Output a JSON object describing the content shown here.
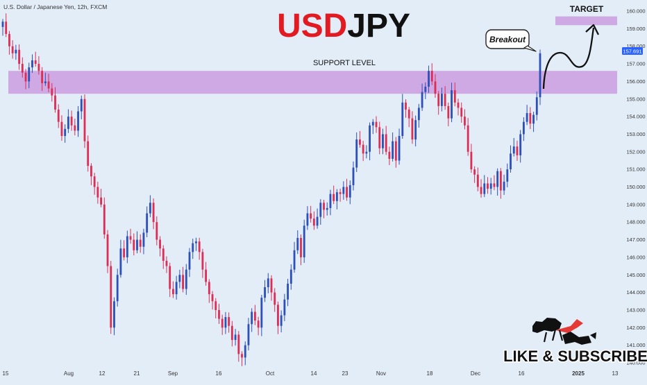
{
  "header": {
    "source": "U.S. Dollar / Japanese Yen, 12h, FXCM"
  },
  "title": {
    "part1": "USD",
    "part2": "JPY"
  },
  "annotations": {
    "target": "TARGET",
    "support": "SUPPORT LEVEL",
    "breakout": "Breakout",
    "cta": "LIKE & SUBSCRIBE"
  },
  "price_badge": "157.691",
  "colors": {
    "background": "#e3edf8",
    "bull": "#2d4fb8",
    "bear": "#dc2e55",
    "zone": "#cfa9e3",
    "title_red": "#e21b23",
    "title_dark": "#111111",
    "badge": "#2962ff"
  },
  "chart_data": {
    "type": "candlestick",
    "timeframe": "12h",
    "symbol": "USDJPY",
    "y_axis": {
      "min": 140,
      "max": 160,
      "step": 1,
      "decimals": 3
    },
    "x_ticks": [
      "15",
      "Aug",
      "12",
      "21",
      "Sep",
      "16",
      "Oct",
      "14",
      "23",
      "Nov",
      "18",
      "Dec",
      "16",
      "2025",
      "13"
    ],
    "support_zone": [
      155.3,
      156.6
    ],
    "target_zone": [
      159.2,
      159.7
    ],
    "last_price": 157.691,
    "closes": [
      159.4,
      158.7,
      158.0,
      157.6,
      157.8,
      157.0,
      156.5,
      156.0,
      156.8,
      157.2,
      157.0,
      156.6,
      155.9,
      156.0,
      155.6,
      155.2,
      154.4,
      153.7,
      152.9,
      153.3,
      154.0,
      153.5,
      153.2,
      154.3,
      155.0,
      152.6,
      151.2,
      150.6,
      150.0,
      149.4,
      149.0,
      147.3,
      145.5,
      142.0,
      143.5,
      145.0,
      146.5,
      146.0,
      147.2,
      147.0,
      146.4,
      147.0,
      146.6,
      147.4,
      148.5,
      149.1,
      148.0,
      147.0,
      146.5,
      145.8,
      145.5,
      144.2,
      143.9,
      144.6,
      145.0,
      144.2,
      145.3,
      146.3,
      146.8,
      146.9,
      146.3,
      145.3,
      144.6,
      143.9,
      143.5,
      143.0,
      142.5,
      142.0,
      142.6,
      142.1,
      141.3,
      141.6,
      140.5,
      140.3,
      141.0,
      142.2,
      142.9,
      142.4,
      142.0,
      143.7,
      144.3,
      144.8,
      144.0,
      143.3,
      142.1,
      142.7,
      143.6,
      144.5,
      145.3,
      146.4,
      147.1,
      146.0,
      147.8,
      148.5,
      148.2,
      147.8,
      148.3,
      149.1,
      148.7,
      148.8,
      149.6,
      149.2,
      149.7,
      149.6,
      150.0,
      149.4,
      150.1,
      151.1,
      152.7,
      152.4,
      151.9,
      152.0,
      153.5,
      153.7,
      153.4,
      152.2,
      153.0,
      152.0,
      151.6,
      152.6,
      151.5,
      152.9,
      154.8,
      154.4,
      153.9,
      152.7,
      153.8,
      154.5,
      155.4,
      155.7,
      156.6,
      156.0,
      155.3,
      154.6,
      155.3,
      154.6,
      153.9,
      155.5,
      154.8,
      154.5,
      154.0,
      153.5,
      152.0,
      151.0,
      150.7,
      150.0,
      149.6,
      150.2,
      149.9,
      150.2,
      150.0,
      150.9,
      149.8,
      150.3,
      151.0,
      151.9,
      152.3,
      151.8,
      153.0,
      153.7,
      154.2,
      153.6,
      154.1,
      155.1,
      157.6
    ]
  }
}
